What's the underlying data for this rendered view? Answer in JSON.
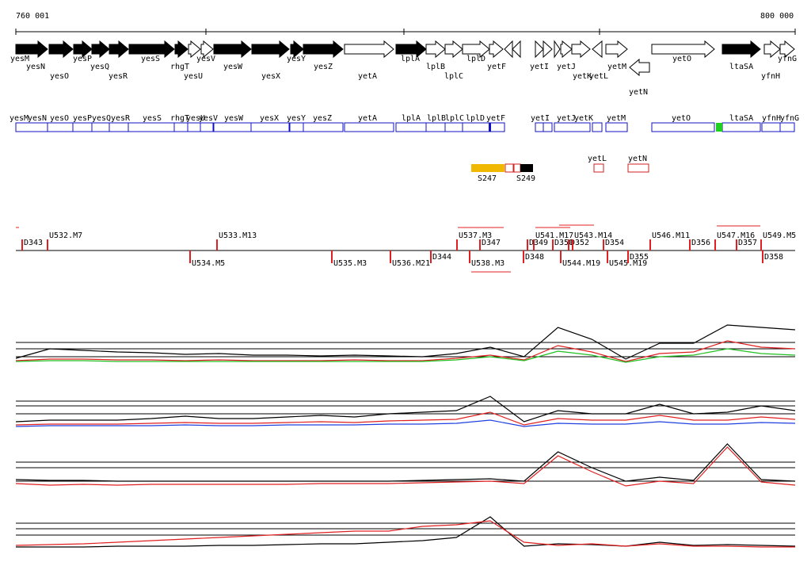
{
  "header": {
    "start": "760 001",
    "end": "800 000"
  },
  "genes": [
    "yesM",
    "yesN",
    "yesO",
    "yesP",
    "yesQ",
    "yesR",
    "yesS",
    "rhgT",
    "yesU",
    "yesV",
    "yesW",
    "yesX",
    "yesY",
    "yesZ",
    "yetA",
    "lplA",
    "lplB",
    "lplC",
    "lplD",
    "yetF",
    "yetI",
    "yetJ",
    "yetK",
    "yetL",
    "yetM",
    "yetN",
    "yetO",
    "ltaSA",
    "yfnG",
    "yfnH"
  ],
  "gene_boxes": [
    "yesM",
    "yesN",
    "yesO",
    "yesP",
    "yesQ",
    "yesR",
    "yesS",
    "rhgT",
    "yesU",
    "yesV",
    "yesW",
    "yesX",
    "yesY",
    "yesZ",
    "yetA",
    "lplA",
    "lplB",
    "lplC",
    "lplD",
    "yetF",
    "yetI",
    "yetJ",
    "yetK",
    "yetM",
    "yetO",
    "ltaSA",
    "yfnH",
    "yfnG"
  ],
  "features": {
    "boxes": [
      "yetL",
      "yetN"
    ],
    "segments": [
      "S247",
      "S249"
    ]
  },
  "units": [
    "D343",
    "U532.M7",
    "U533.M13",
    "U534.M5",
    "U535.M3",
    "U536.M21",
    "D344",
    "U537.M3",
    "D347",
    "U538.M3",
    "D348",
    "U541.M17",
    "D349",
    "D350",
    "D352",
    "U543.M14",
    "U544.M19",
    "D354",
    "U545.M19",
    "D355",
    "U546.M11",
    "D356",
    "U547.M16",
    "D357",
    "U549.M5",
    "D358"
  ],
  "tracks": [
    {
      "traces": [
        {
          "color": "#000000",
          "values": [
            6,
            18,
            16,
            14,
            13,
            11,
            12,
            10,
            10,
            9,
            10,
            9,
            8,
            12,
            20,
            8,
            45,
            30,
            5,
            25,
            25,
            48,
            45,
            42
          ]
        },
        {
          "color": "#e02020",
          "values": [
            3,
            5,
            5,
            4,
            4,
            3,
            4,
            3,
            3,
            3,
            4,
            3,
            3,
            6,
            10,
            4,
            22,
            14,
            2,
            12,
            14,
            28,
            20,
            18
          ]
        },
        {
          "color": "#20c020",
          "values": [
            2,
            3,
            3,
            2,
            2,
            2,
            2,
            2,
            2,
            2,
            2,
            2,
            2,
            4,
            8,
            3,
            15,
            10,
            1,
            8,
            10,
            18,
            12,
            10
          ]
        }
      ]
    },
    {
      "traces": [
        {
          "color": "#000000",
          "values": [
            8,
            10,
            10,
            10,
            12,
            15,
            12,
            12,
            14,
            16,
            14,
            18,
            20,
            22,
            40,
            8,
            22,
            18,
            18,
            30,
            18,
            20,
            28,
            22
          ]
        },
        {
          "color": "#e02020",
          "values": [
            4,
            5,
            5,
            5,
            6,
            7,
            6,
            6,
            7,
            8,
            7,
            9,
            10,
            11,
            20,
            4,
            12,
            10,
            10,
            16,
            10,
            10,
            14,
            11
          ]
        },
        {
          "color": "#2040e0",
          "values": [
            2,
            3,
            3,
            3,
            3,
            4,
            3,
            3,
            4,
            4,
            4,
            5,
            5,
            6,
            10,
            2,
            6,
            5,
            5,
            8,
            5,
            5,
            7,
            6
          ]
        }
      ]
    },
    {
      "traces": [
        {
          "color": "#000000",
          "values": [
            5,
            4,
            4,
            3,
            3,
            3,
            3,
            3,
            3,
            3,
            3,
            3,
            4,
            5,
            6,
            3,
            40,
            20,
            3,
            8,
            4,
            50,
            5,
            3
          ]
        },
        {
          "color": "#e02020",
          "values": [
            0,
            -2,
            -1,
            -2,
            -1,
            -1,
            -1,
            -1,
            -1,
            0,
            0,
            0,
            1,
            2,
            3,
            0,
            35,
            15,
            -3,
            3,
            0,
            46,
            2,
            -2
          ]
        }
      ]
    },
    {
      "traces": [
        {
          "color": "#000000",
          "values": [
            2,
            2,
            2,
            3,
            3,
            3,
            4,
            4,
            5,
            6,
            6,
            8,
            10,
            14,
            40,
            3,
            6,
            5,
            3,
            8,
            4,
            5,
            4,
            3
          ]
        },
        {
          "color": "#e02020",
          "values": [
            4,
            5,
            6,
            8,
            10,
            12,
            14,
            16,
            18,
            20,
            22,
            22,
            28,
            30,
            35,
            8,
            4,
            6,
            3,
            6,
            3,
            3,
            2,
            2
          ]
        }
      ]
    }
  ]
}
